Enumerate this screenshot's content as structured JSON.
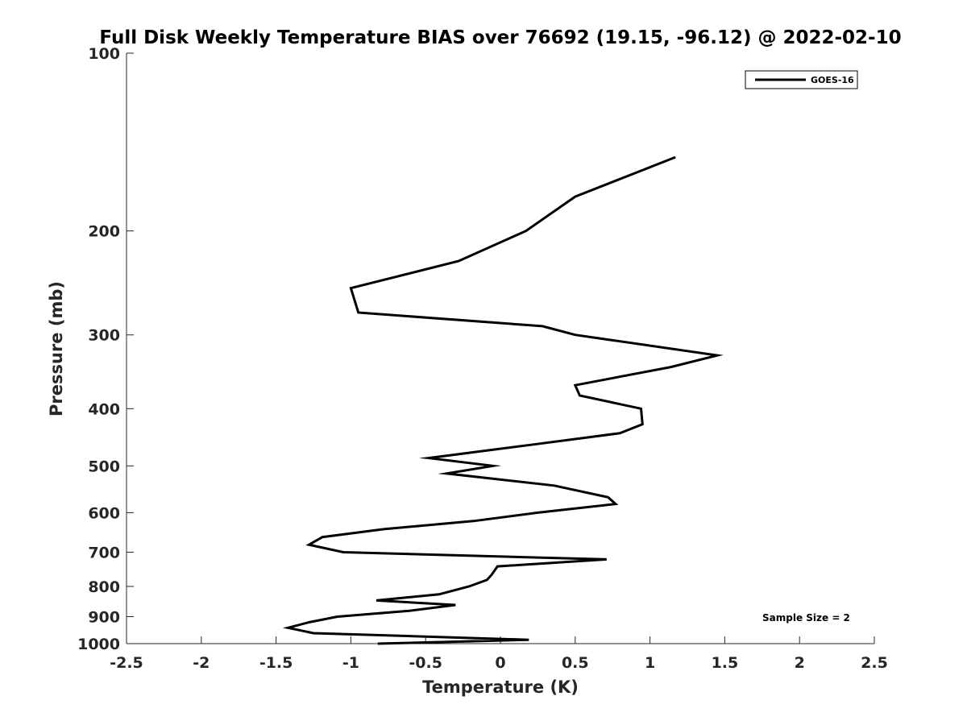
{
  "chart_data": {
    "type": "line",
    "title": "Full Disk Weekly Temperature BIAS over 76692 (19.15, -96.12) @ 2022-02-10",
    "xlabel": "Temperature (K)",
    "ylabel": "Pressure (mb)",
    "xlim": [
      -2.5,
      2.5
    ],
    "ylim": [
      100,
      1000
    ],
    "yscale": "log",
    "yaxis_reversed": true,
    "grid": false,
    "legend_position": "top-right",
    "x_ticks": [
      -2.5,
      -2,
      -1.5,
      -1,
      -0.5,
      0,
      0.5,
      1,
      1.5,
      2,
      2.5
    ],
    "x_tick_labels": [
      "-2.5",
      "-2",
      "-1.5",
      "-1",
      "-0.5",
      "0",
      "0.5",
      "1",
      "1.5",
      "2",
      "2.5"
    ],
    "y_ticks": [
      100,
      200,
      300,
      400,
      500,
      600,
      700,
      800,
      900,
      1000
    ],
    "y_tick_labels": [
      "100",
      "200",
      "300",
      "400",
      "500",
      "600",
      "700",
      "800",
      "900",
      "1000"
    ],
    "annotation": "Sample Size = 2",
    "series": [
      {
        "name": "GOES-16",
        "color": "#000000",
        "points": [
          {
            "x": 1.17,
            "p": 150
          },
          {
            "x": 0.5,
            "p": 175
          },
          {
            "x": 0.17,
            "p": 200
          },
          {
            "x": -0.28,
            "p": 225
          },
          {
            "x": -1.0,
            "p": 250
          },
          {
            "x": -0.95,
            "p": 275
          },
          {
            "x": 0.28,
            "p": 290
          },
          {
            "x": 0.5,
            "p": 300
          },
          {
            "x": 1.45,
            "p": 325
          },
          {
            "x": 1.14,
            "p": 340
          },
          {
            "x": 0.5,
            "p": 365
          },
          {
            "x": 0.53,
            "p": 380
          },
          {
            "x": 0.94,
            "p": 400
          },
          {
            "x": 0.95,
            "p": 425
          },
          {
            "x": 0.8,
            "p": 440
          },
          {
            "x": 0.22,
            "p": 460
          },
          {
            "x": -0.48,
            "p": 485
          },
          {
            "x": -0.05,
            "p": 500
          },
          {
            "x": -0.36,
            "p": 515
          },
          {
            "x": 0.36,
            "p": 540
          },
          {
            "x": 0.72,
            "p": 565
          },
          {
            "x": 0.77,
            "p": 580
          },
          {
            "x": 0.25,
            "p": 600
          },
          {
            "x": -0.18,
            "p": 620
          },
          {
            "x": -0.78,
            "p": 640
          },
          {
            "x": -1.19,
            "p": 660
          },
          {
            "x": -1.28,
            "p": 680
          },
          {
            "x": -1.05,
            "p": 700
          },
          {
            "x": 0.71,
            "p": 720
          },
          {
            "x": -0.02,
            "p": 740
          },
          {
            "x": -0.06,
            "p": 765
          },
          {
            "x": -0.09,
            "p": 780
          },
          {
            "x": -0.21,
            "p": 800
          },
          {
            "x": -0.41,
            "p": 825
          },
          {
            "x": -0.83,
            "p": 845
          },
          {
            "x": -0.3,
            "p": 860
          },
          {
            "x": -0.61,
            "p": 880
          },
          {
            "x": -1.09,
            "p": 900
          },
          {
            "x": -1.28,
            "p": 920
          },
          {
            "x": -1.42,
            "p": 940
          },
          {
            "x": -1.25,
            "p": 960
          },
          {
            "x": 0.19,
            "p": 985
          },
          {
            "x": -0.82,
            "p": 1000
          }
        ]
      }
    ]
  }
}
